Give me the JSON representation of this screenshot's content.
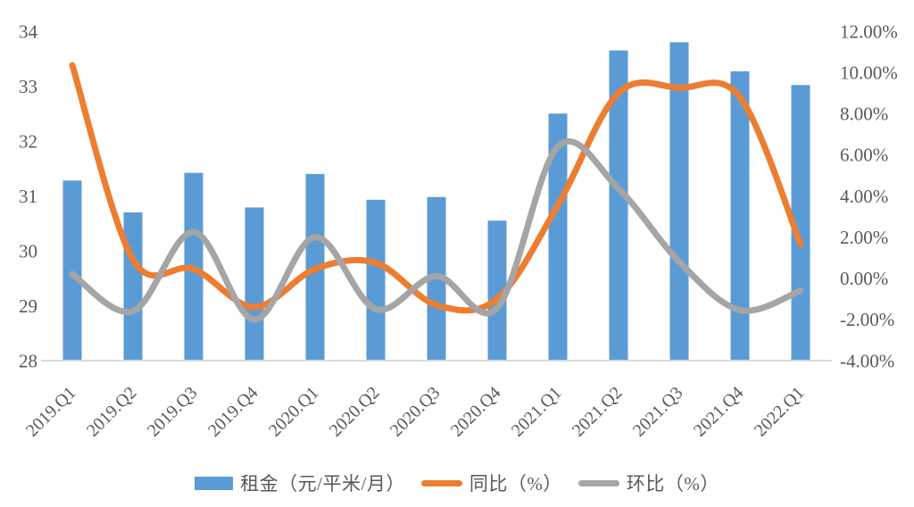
{
  "colors": {
    "bar_blue": "#5B9BD5",
    "line_orange": "#ED7D31",
    "line_gray": "#A5A5A5",
    "axis_text": "#595959",
    "axis_line": "#D9D9D9",
    "background": "#FFFFFF"
  },
  "chart_data": {
    "type": "combo (bar + smooth lines, dual axis)",
    "title": "",
    "xlabel": "",
    "ylabel_left": "",
    "ylabel_right": "",
    "grid": false,
    "legend_position": "bottom",
    "categories": [
      "2019.Q1",
      "2019.Q2",
      "2019.Q3",
      "2019.Q4",
      "2020.Q1",
      "2020.Q2",
      "2020.Q3",
      "2020.Q4",
      "2021.Q1",
      "2021.Q2",
      "2021.Q3",
      "2021.Q4",
      "2022.Q1"
    ],
    "series": [
      {
        "key": "rent",
        "name": "租金（元/平米/月）",
        "type": "bar",
        "axis": "left",
        "color": "#5B9BD5",
        "values": [
          31.28,
          30.7,
          31.42,
          30.79,
          31.4,
          30.93,
          30.98,
          30.55,
          32.5,
          33.65,
          33.8,
          33.27,
          33.02
        ]
      },
      {
        "key": "yoy",
        "name": "同比（%）",
        "type": "line",
        "axis": "right",
        "color": "#ED7D31",
        "values": [
          10.35,
          0.9,
          0.45,
          -1.4,
          0.45,
          0.75,
          -1.3,
          -1.0,
          3.55,
          9.0,
          9.25,
          8.8,
          1.65
        ]
      },
      {
        "key": "qoq",
        "name": "环比（%）",
        "type": "line",
        "axis": "right",
        "color": "#A5A5A5",
        "values": [
          0.2,
          -1.6,
          2.25,
          -2.0,
          2.0,
          -1.5,
          0.1,
          -1.45,
          6.4,
          4.35,
          0.8,
          -1.55,
          -0.6
        ]
      }
    ],
    "left_axis": {
      "min": 28,
      "max": 34,
      "tick_values": [
        34,
        33,
        32,
        31,
        30,
        29,
        28
      ],
      "tick_labels": [
        "34",
        "33",
        "32",
        "31",
        "30",
        "29",
        "28"
      ]
    },
    "right_axis": {
      "min": -4,
      "max": 12,
      "tick_values": [
        12,
        10,
        8,
        6,
        4,
        2,
        0,
        -2,
        -4
      ],
      "tick_labels": [
        "12.00%",
        "10.00%",
        "8.00%",
        "6.00%",
        "4.00%",
        "2.00%",
        "0.00%",
        "-2.00%",
        "-4.00%"
      ]
    }
  }
}
